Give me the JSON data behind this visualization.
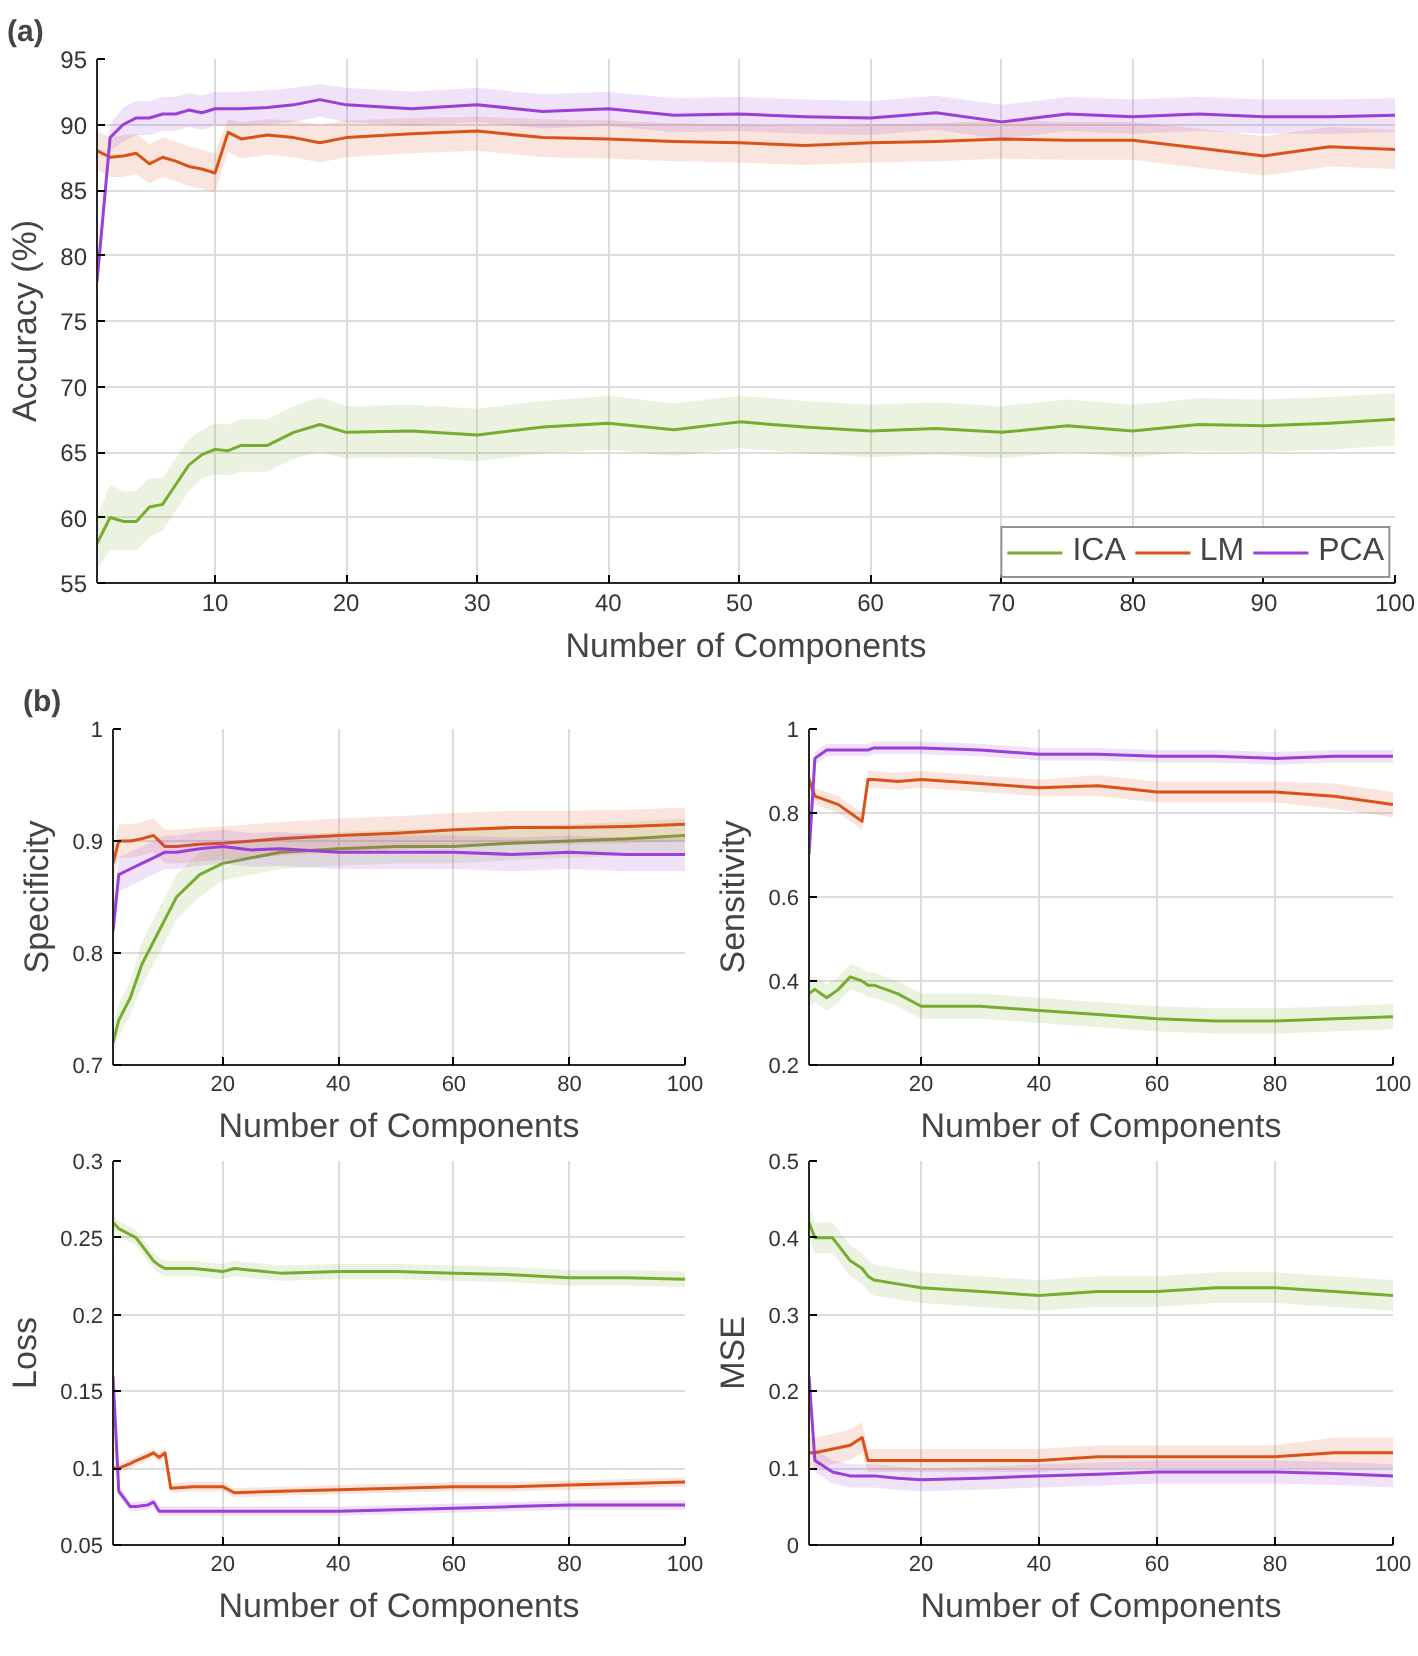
{
  "chart_data": [
    {
      "type": "line",
      "annotations": [
        "(a)"
      ],
      "xlabel": "Number of Components",
      "ylabel": "Accuracy (%)",
      "xlim": [
        1,
        100
      ],
      "xticks": [
        10,
        20,
        30,
        40,
        50,
        60,
        70,
        80,
        90,
        100
      ],
      "ylim": [
        55,
        95
      ],
      "yticks": [
        55,
        60,
        65,
        70,
        75,
        80,
        85,
        90,
        95
      ],
      "grid": true,
      "legend": "bottom right",
      "line_style": "solid",
      "x": [
        1,
        2,
        3,
        4,
        5,
        6,
        7,
        8,
        9,
        10,
        11,
        12,
        14,
        16,
        18,
        20,
        25,
        30,
        35,
        40,
        45,
        50,
        55,
        60,
        65,
        70,
        75,
        80,
        85,
        90,
        95,
        100
      ],
      "series": [
        {
          "name": "ICA",
          "color": "#77ac30",
          "values": [
            58,
            60,
            59.7,
            59.7,
            60.8,
            61,
            62.5,
            64,
            64.8,
            65.2,
            65.1,
            65.5,
            65.5,
            66.5,
            67.1,
            66.5,
            66.6,
            66.3,
            66.9,
            67.2,
            66.7,
            67.3,
            66.9,
            66.6,
            66.8,
            66.5,
            67,
            66.6,
            67.1,
            67,
            67.2,
            67.5
          ],
          "lower": [
            56,
            57.5,
            57.5,
            57.5,
            58.5,
            59,
            60.5,
            62,
            63,
            63.3,
            63.2,
            63.5,
            63.5,
            64.5,
            65,
            64.5,
            64.6,
            64.3,
            64.9,
            65.2,
            64.7,
            65.3,
            64.9,
            64.6,
            64.8,
            64.5,
            65,
            64.6,
            65.1,
            65,
            65.2,
            65.5
          ],
          "upper": [
            60,
            62.5,
            62,
            62,
            63,
            63,
            64.5,
            66,
            66.7,
            67.2,
            67.1,
            67.5,
            67.5,
            68.5,
            69.2,
            68.5,
            68.6,
            68.3,
            68.9,
            69.3,
            68.7,
            69.3,
            68.9,
            68.6,
            68.8,
            68.5,
            69,
            68.6,
            69.1,
            69,
            69.2,
            69.5
          ]
        },
        {
          "name": "LM",
          "color": "#d95319",
          "values": [
            88,
            87.5,
            87.6,
            87.8,
            87,
            87.5,
            87.2,
            86.8,
            86.6,
            86.3,
            89.4,
            88.9,
            89.2,
            89,
            88.6,
            89,
            89.3,
            89.5,
            89,
            88.9,
            88.7,
            88.6,
            88.4,
            88.6,
            88.7,
            88.9,
            88.8,
            88.8,
            88.2,
            87.6,
            88.3,
            88.1
          ],
          "lower": [
            86.5,
            86,
            86,
            86.2,
            85.5,
            86,
            85.7,
            85.3,
            85.1,
            84.8,
            87.9,
            87.4,
            87.7,
            87.5,
            87.1,
            87.5,
            87.8,
            88,
            87.5,
            87.4,
            87.2,
            87.1,
            86.9,
            87.1,
            87.2,
            87.4,
            87.3,
            87.3,
            86.7,
            86.1,
            86.8,
            86.6
          ],
          "upper": [
            89.5,
            89,
            89.2,
            89.3,
            88.5,
            89,
            88.7,
            88.3,
            88.1,
            87.8,
            90.4,
            90.2,
            90.4,
            90.3,
            90,
            90.3,
            90.5,
            90.6,
            90.4,
            90.3,
            90.1,
            90,
            89.9,
            90,
            90.1,
            90.3,
            90.2,
            90.2,
            89.7,
            89.1,
            89.8,
            89.6
          ]
        },
        {
          "name": "PCA",
          "color": "#9b3fd6",
          "values": [
            78,
            89,
            90,
            90.5,
            90.5,
            90.8,
            90.8,
            91.1,
            90.9,
            91.2,
            91.2,
            91.2,
            91.3,
            91.5,
            91.9,
            91.5,
            91.2,
            91.5,
            91,
            91.2,
            90.7,
            90.8,
            90.6,
            90.5,
            90.9,
            90.2,
            90.8,
            90.6,
            90.8,
            90.6,
            90.6,
            90.7
          ],
          "lower": [
            77,
            88,
            88.7,
            89.2,
            89.2,
            89.5,
            89.5,
            89.8,
            89.6,
            89.9,
            89.9,
            89.9,
            90,
            90.2,
            90.6,
            90.2,
            89.9,
            90.2,
            89.7,
            89.9,
            89.4,
            89.5,
            89.3,
            89.2,
            89.6,
            88.9,
            89.5,
            89.3,
            89.5,
            89.3,
            89.3,
            89.4
          ],
          "upper": [
            79,
            90,
            91.3,
            91.8,
            91.8,
            92.1,
            92.1,
            92.4,
            92.2,
            92.5,
            92.5,
            92.5,
            92.6,
            92.8,
            93.1,
            92.8,
            92.5,
            92.8,
            92.3,
            92.5,
            92,
            92.1,
            91.9,
            91.8,
            92.2,
            91.5,
            92.1,
            91.9,
            92.1,
            91.9,
            91.9,
            92
          ]
        }
      ]
    },
    {
      "type": "line",
      "annotations": [
        "(b)"
      ],
      "xlabel": "Number of Components",
      "ylabel": "Specificity",
      "xlim": [
        1,
        100
      ],
      "xticks": [
        20,
        40,
        60,
        80,
        100
      ],
      "ylim": [
        0.7,
        1
      ],
      "yticks": [
        0.7,
        0.8,
        0.9,
        1
      ],
      "grid": true,
      "line_style": "solid",
      "x": [
        1,
        2,
        4,
        6,
        8,
        10,
        12,
        16,
        20,
        25,
        30,
        40,
        50,
        60,
        70,
        80,
        90,
        100
      ],
      "series": [
        {
          "color": "#77ac30",
          "values": [
            0.72,
            0.74,
            0.76,
            0.79,
            0.81,
            0.83,
            0.85,
            0.87,
            0.88,
            0.885,
            0.89,
            0.893,
            0.895,
            0.895,
            0.898,
            0.9,
            0.902,
            0.905
          ],
          "lower": [
            0.71,
            0.725,
            0.745,
            0.77,
            0.79,
            0.81,
            0.83,
            0.85,
            0.865,
            0.87,
            0.875,
            0.878,
            0.88,
            0.88,
            0.883,
            0.885,
            0.887,
            0.89
          ],
          "upper": [
            0.735,
            0.755,
            0.775,
            0.81,
            0.83,
            0.85,
            0.87,
            0.89,
            0.895,
            0.9,
            0.905,
            0.908,
            0.91,
            0.91,
            0.913,
            0.915,
            0.917,
            0.92
          ]
        },
        {
          "color": "#d95319",
          "values": [
            0.88,
            0.9,
            0.9,
            0.902,
            0.905,
            0.895,
            0.895,
            0.897,
            0.898,
            0.9,
            0.902,
            0.905,
            0.907,
            0.91,
            0.912,
            0.912,
            0.913,
            0.915
          ],
          "lower": [
            0.865,
            0.885,
            0.885,
            0.887,
            0.89,
            0.88,
            0.88,
            0.882,
            0.883,
            0.885,
            0.887,
            0.89,
            0.892,
            0.895,
            0.897,
            0.897,
            0.898,
            0.9
          ],
          "upper": [
            0.895,
            0.915,
            0.915,
            0.917,
            0.92,
            0.91,
            0.91,
            0.912,
            0.913,
            0.915,
            0.917,
            0.92,
            0.922,
            0.925,
            0.927,
            0.927,
            0.928,
            0.93
          ]
        },
        {
          "color": "#9b3fd6",
          "values": [
            0.82,
            0.87,
            0.875,
            0.88,
            0.885,
            0.89,
            0.89,
            0.893,
            0.895,
            0.892,
            0.893,
            0.89,
            0.89,
            0.89,
            0.888,
            0.89,
            0.888,
            0.888
          ],
          "lower": [
            0.8,
            0.855,
            0.86,
            0.865,
            0.87,
            0.875,
            0.875,
            0.878,
            0.88,
            0.877,
            0.878,
            0.875,
            0.875,
            0.875,
            0.873,
            0.875,
            0.873,
            0.873
          ],
          "upper": [
            0.84,
            0.885,
            0.89,
            0.895,
            0.9,
            0.905,
            0.905,
            0.908,
            0.91,
            0.907,
            0.908,
            0.905,
            0.905,
            0.905,
            0.903,
            0.905,
            0.903,
            0.903
          ]
        }
      ]
    },
    {
      "type": "line",
      "xlabel": "Number of Components",
      "ylabel": "Sensitivity",
      "xlim": [
        1,
        100
      ],
      "xticks": [
        20,
        40,
        60,
        80,
        100
      ],
      "ylim": [
        0.2,
        1
      ],
      "yticks": [
        0.2,
        0.4,
        0.6,
        0.8,
        1
      ],
      "grid": true,
      "line_style": "solid",
      "x": [
        1,
        2,
        4,
        6,
        8,
        10,
        11,
        12,
        16,
        20,
        30,
        40,
        50,
        60,
        70,
        80,
        90,
        100
      ],
      "series": [
        {
          "color": "#77ac30",
          "values": [
            0.37,
            0.38,
            0.36,
            0.38,
            0.41,
            0.4,
            0.39,
            0.39,
            0.37,
            0.34,
            0.34,
            0.33,
            0.32,
            0.31,
            0.305,
            0.305,
            0.31,
            0.315
          ],
          "lower": [
            0.34,
            0.35,
            0.33,
            0.35,
            0.38,
            0.37,
            0.36,
            0.36,
            0.34,
            0.31,
            0.31,
            0.3,
            0.29,
            0.28,
            0.275,
            0.275,
            0.28,
            0.285
          ],
          "upper": [
            0.4,
            0.41,
            0.39,
            0.41,
            0.44,
            0.43,
            0.42,
            0.42,
            0.4,
            0.37,
            0.37,
            0.36,
            0.35,
            0.34,
            0.335,
            0.335,
            0.34,
            0.345
          ]
        },
        {
          "color": "#d95319",
          "values": [
            0.88,
            0.84,
            0.83,
            0.82,
            0.8,
            0.78,
            0.88,
            0.88,
            0.875,
            0.88,
            0.87,
            0.86,
            0.865,
            0.85,
            0.85,
            0.85,
            0.84,
            0.82
          ],
          "lower": [
            0.86,
            0.82,
            0.81,
            0.8,
            0.78,
            0.76,
            0.86,
            0.86,
            0.855,
            0.86,
            0.85,
            0.84,
            0.84,
            0.825,
            0.825,
            0.825,
            0.81,
            0.79
          ],
          "upper": [
            0.9,
            0.86,
            0.85,
            0.84,
            0.82,
            0.8,
            0.9,
            0.9,
            0.895,
            0.9,
            0.89,
            0.88,
            0.89,
            0.875,
            0.875,
            0.875,
            0.87,
            0.85
          ]
        },
        {
          "color": "#9b3fd6",
          "values": [
            0.7,
            0.93,
            0.95,
            0.95,
            0.95,
            0.95,
            0.95,
            0.955,
            0.955,
            0.955,
            0.95,
            0.94,
            0.94,
            0.935,
            0.935,
            0.93,
            0.935,
            0.935
          ],
          "lower": [
            0.68,
            0.915,
            0.935,
            0.935,
            0.935,
            0.935,
            0.935,
            0.94,
            0.94,
            0.94,
            0.935,
            0.925,
            0.925,
            0.92,
            0.92,
            0.915,
            0.92,
            0.92
          ],
          "upper": [
            0.72,
            0.945,
            0.965,
            0.965,
            0.965,
            0.965,
            0.965,
            0.97,
            0.97,
            0.97,
            0.965,
            0.955,
            0.955,
            0.95,
            0.95,
            0.945,
            0.95,
            0.95
          ]
        }
      ]
    },
    {
      "type": "line",
      "xlabel": "Number of Components",
      "ylabel": "Loss",
      "xlim": [
        1,
        100
      ],
      "xticks": [
        20,
        40,
        60,
        80,
        100
      ],
      "ylim": [
        0.05,
        0.3
      ],
      "yticks": [
        0.05,
        0.1,
        0.15,
        0.2,
        0.25,
        0.3
      ],
      "grid": true,
      "line_style": "solid",
      "x": [
        1,
        2,
        4,
        5,
        7,
        8,
        9,
        10,
        11,
        15,
        20,
        22,
        30,
        40,
        50,
        60,
        70,
        80,
        90,
        100
      ],
      "series": [
        {
          "color": "#77ac30",
          "values": [
            0.26,
            0.256,
            0.252,
            0.25,
            0.24,
            0.235,
            0.232,
            0.23,
            0.23,
            0.23,
            0.228,
            0.23,
            0.227,
            0.228,
            0.228,
            0.227,
            0.226,
            0.224,
            0.224,
            0.223
          ],
          "lower": [
            0.255,
            0.251,
            0.247,
            0.245,
            0.235,
            0.23,
            0.227,
            0.225,
            0.225,
            0.225,
            0.223,
            0.225,
            0.222,
            0.223,
            0.223,
            0.222,
            0.221,
            0.219,
            0.219,
            0.218
          ],
          "upper": [
            0.265,
            0.261,
            0.257,
            0.255,
            0.245,
            0.24,
            0.237,
            0.235,
            0.235,
            0.235,
            0.233,
            0.235,
            0.232,
            0.233,
            0.233,
            0.232,
            0.231,
            0.229,
            0.229,
            0.228
          ]
        },
        {
          "color": "#d95319",
          "values": [
            0.1,
            0.1,
            0.103,
            0.105,
            0.108,
            0.11,
            0.107,
            0.11,
            0.087,
            0.088,
            0.088,
            0.084,
            0.085,
            0.086,
            0.087,
            0.088,
            0.088,
            0.089,
            0.09,
            0.091
          ],
          "lower": [
            0.097,
            0.097,
            0.1,
            0.102,
            0.105,
            0.107,
            0.104,
            0.107,
            0.084,
            0.085,
            0.085,
            0.081,
            0.082,
            0.083,
            0.084,
            0.085,
            0.085,
            0.086,
            0.087,
            0.088
          ],
          "upper": [
            0.103,
            0.103,
            0.106,
            0.108,
            0.111,
            0.113,
            0.11,
            0.113,
            0.09,
            0.091,
            0.091,
            0.087,
            0.088,
            0.089,
            0.09,
            0.091,
            0.091,
            0.092,
            0.093,
            0.094
          ]
        },
        {
          "color": "#9b3fd6",
          "values": [
            0.16,
            0.085,
            0.075,
            0.075,
            0.076,
            0.078,
            0.072,
            0.072,
            0.072,
            0.072,
            0.072,
            0.072,
            0.072,
            0.072,
            0.073,
            0.074,
            0.075,
            0.076,
            0.076,
            0.076
          ],
          "lower": [
            0.157,
            0.082,
            0.072,
            0.072,
            0.073,
            0.075,
            0.069,
            0.069,
            0.069,
            0.069,
            0.069,
            0.069,
            0.069,
            0.069,
            0.07,
            0.071,
            0.072,
            0.073,
            0.073,
            0.073
          ],
          "upper": [
            0.163,
            0.088,
            0.078,
            0.078,
            0.079,
            0.081,
            0.075,
            0.075,
            0.075,
            0.075,
            0.075,
            0.075,
            0.075,
            0.075,
            0.076,
            0.077,
            0.078,
            0.079,
            0.079,
            0.079
          ]
        }
      ]
    },
    {
      "type": "line",
      "xlabel": "Number of Components",
      "ylabel": "MSE",
      "xlim": [
        1,
        100
      ],
      "xticks": [
        20,
        40,
        60,
        80,
        100
      ],
      "ylim": [
        0,
        0.5
      ],
      "yticks": [
        0,
        0.1,
        0.2,
        0.3,
        0.4,
        0.5
      ],
      "grid": true,
      "line_style": "solid",
      "x": [
        1,
        2,
        5,
        8,
        10,
        11,
        12,
        16,
        20,
        30,
        40,
        50,
        60,
        70,
        80,
        90,
        100
      ],
      "series": [
        {
          "color": "#77ac30",
          "values": [
            0.42,
            0.4,
            0.4,
            0.37,
            0.36,
            0.35,
            0.345,
            0.34,
            0.335,
            0.33,
            0.325,
            0.33,
            0.33,
            0.335,
            0.335,
            0.33,
            0.325
          ],
          "lower": [
            0.4,
            0.38,
            0.38,
            0.35,
            0.34,
            0.33,
            0.325,
            0.32,
            0.315,
            0.31,
            0.305,
            0.31,
            0.31,
            0.315,
            0.315,
            0.31,
            0.305
          ],
          "upper": [
            0.44,
            0.42,
            0.42,
            0.39,
            0.38,
            0.37,
            0.365,
            0.36,
            0.355,
            0.35,
            0.345,
            0.35,
            0.35,
            0.355,
            0.355,
            0.35,
            0.345
          ]
        },
        {
          "color": "#d95319",
          "values": [
            0.12,
            0.12,
            0.125,
            0.13,
            0.14,
            0.11,
            0.11,
            0.11,
            0.11,
            0.11,
            0.11,
            0.115,
            0.115,
            0.115,
            0.115,
            0.12,
            0.12
          ],
          "lower": [
            0.1,
            0.1,
            0.105,
            0.11,
            0.12,
            0.095,
            0.095,
            0.095,
            0.095,
            0.095,
            0.095,
            0.1,
            0.1,
            0.1,
            0.1,
            0.1,
            0.1
          ],
          "upper": [
            0.14,
            0.14,
            0.145,
            0.15,
            0.16,
            0.125,
            0.125,
            0.125,
            0.125,
            0.125,
            0.125,
            0.13,
            0.13,
            0.13,
            0.13,
            0.14,
            0.14
          ]
        },
        {
          "color": "#9b3fd6",
          "values": [
            0.22,
            0.11,
            0.095,
            0.09,
            0.09,
            0.09,
            0.09,
            0.087,
            0.085,
            0.087,
            0.09,
            0.092,
            0.095,
            0.095,
            0.095,
            0.093,
            0.09
          ],
          "lower": [
            0.2,
            0.095,
            0.08,
            0.075,
            0.075,
            0.075,
            0.075,
            0.072,
            0.07,
            0.072,
            0.075,
            0.077,
            0.08,
            0.08,
            0.08,
            0.078,
            0.075
          ],
          "upper": [
            0.24,
            0.125,
            0.11,
            0.105,
            0.105,
            0.105,
            0.105,
            0.102,
            0.1,
            0.102,
            0.105,
            0.107,
            0.11,
            0.11,
            0.11,
            0.108,
            0.105
          ]
        }
      ]
    }
  ]
}
